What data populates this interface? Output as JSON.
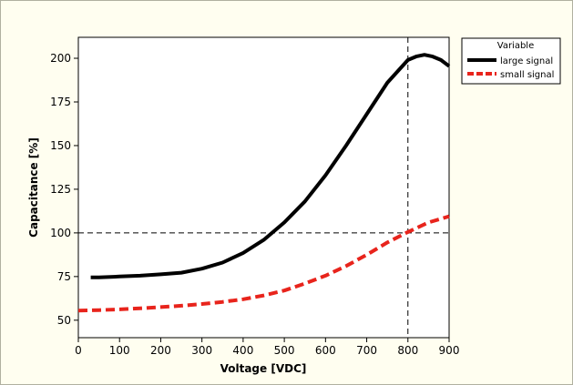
{
  "chart_data": {
    "type": "line",
    "title": "",
    "xlabel": "Voltage [VDC]",
    "ylabel": "Capacitance [%]",
    "xlim": [
      0,
      900
    ],
    "ylim": [
      40,
      212
    ],
    "xticks": [
      "0",
      "100",
      "200",
      "300",
      "400",
      "500",
      "600",
      "700",
      "800",
      "900"
    ],
    "yticks": [
      "50",
      "75",
      "100",
      "125",
      "150",
      "175",
      "200"
    ],
    "grid": false,
    "reference_lines": [
      {
        "orientation": "horizontal",
        "value": 100
      },
      {
        "orientation": "vertical",
        "value": 800
      }
    ],
    "legend": {
      "title": "Variable",
      "placement": "right",
      "entries": [
        "large signal",
        "small signal"
      ]
    },
    "series": [
      {
        "name": "large signal",
        "color": "#000000",
        "style": "solid",
        "x": [
          30,
          50,
          100,
          150,
          200,
          250,
          300,
          350,
          400,
          450,
          500,
          550,
          600,
          650,
          700,
          750,
          800,
          820,
          840,
          860,
          880,
          900
        ],
        "y": [
          74.5,
          74.5,
          75,
          75.5,
          76.3,
          77.2,
          79.5,
          83,
          88.5,
          96,
          106,
          118,
          133,
          150,
          168,
          186,
          199,
          201,
          202,
          201,
          199,
          195.5
        ]
      },
      {
        "name": "small signal",
        "color": "#e8241c",
        "style": "dashed",
        "x": [
          0,
          50,
          100,
          150,
          200,
          250,
          300,
          350,
          400,
          450,
          500,
          550,
          600,
          650,
          700,
          750,
          800,
          850,
          900
        ],
        "y": [
          55.5,
          55.8,
          56.2,
          56.8,
          57.5,
          58.3,
          59.3,
          60.5,
          62,
          64.2,
          67,
          71,
          75.5,
          81,
          87.5,
          94.5,
          100.5,
          106,
          109.5
        ]
      }
    ]
  }
}
